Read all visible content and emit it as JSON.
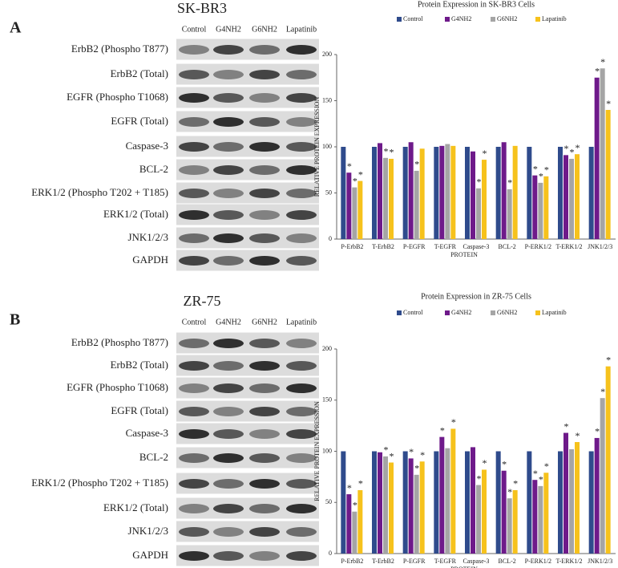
{
  "panels": [
    {
      "label": "A",
      "title": "SK-BR3",
      "columns": [
        "Control",
        "G4NH2",
        "G6NH2",
        "Lapatinib"
      ],
      "rows": [
        "ErbB2 (Phospho T877)",
        "ErbB2 (Total)",
        "EGFR (Phospho T1068)",
        "EGFR (Total)",
        "Caspase-3",
        "BCL-2",
        "ERK1/2 (Phospho T202 + T185)",
        "ERK1/2 (Total)",
        "JNK1/2/3",
        "GAPDH"
      ]
    },
    {
      "label": "B",
      "title": "ZR-75",
      "columns": [
        "Control",
        "G4NH2",
        "G6NH2",
        "Lapatinib"
      ],
      "rows": [
        "ErbB2 (Phospho T877)",
        "ErbB2 (Total)",
        "EGFR (Phospho T1068)",
        "EGFR (Total)",
        "Caspase-3",
        "BCL-2",
        "ERK1/2 (Phospho T202 + T185)",
        "ERK1/2 (Total)",
        "JNK1/2/3",
        "GAPDH"
      ]
    }
  ],
  "chart_data": [
    {
      "type": "bar",
      "title": "Protein Expression in SK-BR3 Cells",
      "x_label": "PROTEIN",
      "y_label": "RELATIVE PROTEIN EXPRESSION",
      "categories": [
        "P-ErbB2",
        "T-ErbB2",
        "P-EGFR",
        "T-EGFR",
        "Caspase-3",
        "BCL-2",
        "P-ERK1/2",
        "T-ERK1/2",
        "JNK1/2/3"
      ],
      "ylim": [
        0,
        200
      ],
      "yticks": [
        0,
        50,
        100,
        150,
        200
      ],
      "legend": "top",
      "series": [
        {
          "name": "Control",
          "color": "#2f4b8c",
          "values": [
            100,
            100,
            100,
            100,
            100,
            100,
            100,
            100,
            100
          ],
          "annotations": [
            null,
            null,
            null,
            null,
            null,
            null,
            null,
            null,
            null
          ]
        },
        {
          "name": "G4NH2",
          "color": "#6e1a8a",
          "values": [
            72,
            104,
            105,
            101,
            95,
            105,
            69,
            91,
            175
          ],
          "annotations": [
            "*",
            null,
            null,
            null,
            null,
            null,
            "*",
            "*",
            "*"
          ]
        },
        {
          "name": "G6NH2",
          "color": "#a5a5a5",
          "values": [
            56,
            88,
            74,
            103,
            55,
            54,
            61,
            87,
            185
          ],
          "annotations": [
            "*",
            "*",
            "*",
            null,
            "*",
            "*",
            "*",
            "*",
            "*"
          ]
        },
        {
          "name": "Lapatinib",
          "color": "#f6c21c",
          "values": [
            63,
            87,
            98,
            101,
            86,
            101,
            68,
            92,
            140
          ],
          "annotations": [
            "*",
            "*",
            null,
            null,
            "*",
            null,
            "*",
            "*",
            "*"
          ]
        }
      ]
    },
    {
      "type": "bar",
      "title": "Protein Expression in ZR-75 Cells",
      "x_label": "PROTEIN",
      "y_label": "RELATIVE PROTEIN EXPRESSION",
      "categories": [
        "P-ErbB2",
        "T-ErbB2",
        "P-EGFR",
        "T-EGFR",
        "Caspase-3",
        "BCL-2",
        "P-ERK1/2",
        "T-ERK1/2",
        "JNK1/2/3"
      ],
      "ylim": [
        0,
        200
      ],
      "yticks": [
        0,
        50,
        100,
        150,
        200
      ],
      "legend": "top",
      "series": [
        {
          "name": "Control",
          "color": "#2f4b8c",
          "values": [
            100,
            100,
            100,
            100,
            100,
            100,
            100,
            100,
            100
          ],
          "annotations": [
            null,
            null,
            null,
            null,
            null,
            null,
            null,
            null,
            null
          ]
        },
        {
          "name": "G4NH2",
          "color": "#6e1a8a",
          "values": [
            58,
            99,
            93,
            114,
            104,
            81,
            72,
            118,
            113
          ],
          "annotations": [
            "*",
            null,
            "*",
            "*",
            null,
            "*",
            "*",
            "*",
            "*"
          ]
        },
        {
          "name": "G6NH2",
          "color": "#a5a5a5",
          "values": [
            41,
            95,
            77,
            103,
            67,
            54,
            66,
            102,
            152
          ],
          "annotations": [
            "*",
            "*",
            "*",
            null,
            "*",
            "*",
            "*",
            null,
            "*"
          ]
        },
        {
          "name": "Lapatinib",
          "color": "#f6c21c",
          "values": [
            62,
            89,
            90,
            122,
            82,
            62,
            79,
            109,
            183
          ],
          "annotations": [
            "*",
            "*",
            "*",
            "*",
            "*",
            "*",
            "*",
            "*",
            "*"
          ]
        }
      ]
    }
  ]
}
